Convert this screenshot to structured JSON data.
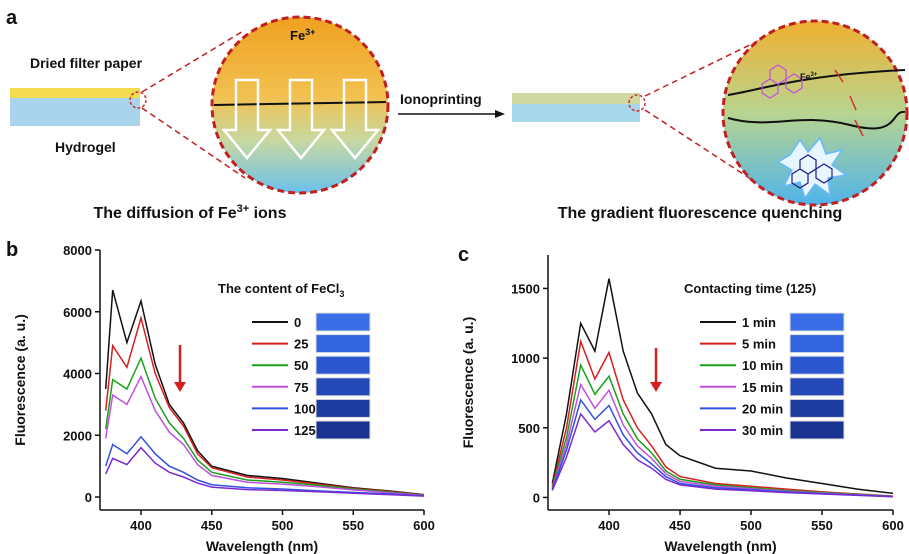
{
  "diagram": {
    "panel_label": "a",
    "top_layer": "Dried filter paper",
    "bottom_layer": "Hydrogel",
    "ion": {
      "text": "Fe",
      "sup": "3+"
    },
    "process": "Ionoprinting",
    "small_ion": {
      "text": "Fe",
      "sup": "3+"
    },
    "left_caption": {
      "text": "The diffusion of Fe",
      "sup": "3+",
      "tail": " ions"
    },
    "right_caption": "The gradient fluorescence quenching"
  },
  "chart_data": [
    {
      "type": "line",
      "panel_label": "b",
      "x_label": "Wavelength (nm)",
      "y_label": "Fluorescence (a. u.)",
      "legend_title": {
        "text": "The content of FeCl",
        "sub": "3"
      },
      "x": [
        375,
        380,
        390,
        400,
        410,
        420,
        430,
        440,
        450,
        475,
        500,
        525,
        550,
        575,
        600
      ],
      "xlim": [
        371,
        600
      ],
      "xticks": [
        400,
        450,
        500,
        550,
        600
      ],
      "ylim": [
        -420,
        8000
      ],
      "yticks": [
        0,
        2000,
        4000,
        6000,
        8000
      ],
      "series": [
        {
          "name": "0",
          "color": "#111111",
          "values": [
            3500,
            6700,
            5000,
            6350,
            4300,
            3000,
            2400,
            1500,
            1000,
            700,
            600,
            450,
            300,
            200,
            80
          ]
        },
        {
          "name": "25",
          "color": "#d62020",
          "values": [
            2800,
            4900,
            4200,
            5800,
            4000,
            2900,
            2300,
            1400,
            950,
            650,
            550,
            420,
            280,
            180,
            70
          ]
        },
        {
          "name": "50",
          "color": "#1aa01a",
          "values": [
            2200,
            3800,
            3500,
            4500,
            3200,
            2400,
            1900,
            1200,
            800,
            550,
            480,
            380,
            260,
            160,
            60
          ]
        },
        {
          "name": "75",
          "color": "#c050e0",
          "values": [
            1900,
            3300,
            3000,
            3900,
            2800,
            2100,
            1700,
            1050,
            700,
            480,
            420,
            330,
            230,
            140,
            50
          ]
        },
        {
          "name": "100",
          "color": "#3050e0",
          "values": [
            1000,
            1700,
            1400,
            1950,
            1400,
            1000,
            800,
            550,
            400,
            300,
            260,
            200,
            150,
            100,
            40
          ]
        },
        {
          "name": "125",
          "color": "#7a2ad0",
          "values": [
            750,
            1250,
            1050,
            1600,
            1100,
            800,
            650,
            450,
            320,
            240,
            210,
            170,
            120,
            80,
            30
          ]
        }
      ]
    },
    {
      "type": "line",
      "panel_label": "c",
      "x_label": "Wavelength (nm)",
      "y_label": "Fluorescence (a. u.)",
      "legend_title": {
        "text": "Contacting time (125)"
      },
      "x": [
        360,
        370,
        380,
        390,
        400,
        410,
        420,
        430,
        440,
        450,
        475,
        500,
        525,
        550,
        575,
        600
      ],
      "xlim": [
        357,
        600
      ],
      "xticks": [
        400,
        450,
        500,
        550,
        600
      ],
      "ylim": [
        -90,
        1740
      ],
      "yticks": [
        0,
        500,
        1000,
        1500
      ],
      "series": [
        {
          "name": "1 min",
          "color": "#111111",
          "values": [
            100,
            600,
            1250,
            1050,
            1570,
            1050,
            750,
            600,
            380,
            300,
            210,
            190,
            140,
            100,
            60,
            30
          ]
        },
        {
          "name": "5 min",
          "color": "#d62020",
          "values": [
            80,
            500,
            1120,
            850,
            1040,
            700,
            500,
            370,
            220,
            150,
            100,
            80,
            60,
            40,
            25,
            10
          ]
        },
        {
          "name": "10 min",
          "color": "#1aa01a",
          "values": [
            70,
            430,
            950,
            740,
            870,
            600,
            420,
            320,
            190,
            130,
            90,
            70,
            50,
            35,
            22,
            8
          ]
        },
        {
          "name": "15 min",
          "color": "#c050e0",
          "values": [
            60,
            380,
            810,
            640,
            770,
            520,
            370,
            280,
            170,
            115,
            80,
            62,
            45,
            30,
            20,
            7
          ]
        },
        {
          "name": "20 min",
          "color": "#3050e0",
          "values": [
            55,
            340,
            700,
            560,
            660,
            450,
            320,
            240,
            150,
            100,
            70,
            55,
            40,
            28,
            18,
            6
          ]
        },
        {
          "name": "30 min",
          "color": "#7a2ad0",
          "values": [
            50,
            290,
            600,
            470,
            550,
            380,
            270,
            210,
            130,
            90,
            60,
            48,
            35,
            25,
            15,
            5
          ]
        }
      ]
    }
  ]
}
